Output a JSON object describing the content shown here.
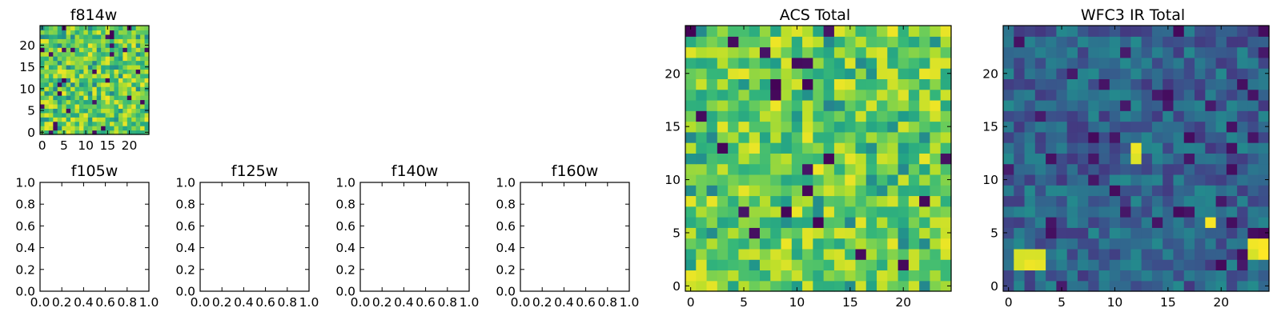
{
  "chart_data": [
    {
      "type": "heatmap",
      "title": "f814w",
      "colormap": "viridis",
      "grid_size": [
        25,
        25
      ],
      "xlim": [
        -0.5,
        24.5
      ],
      "ylim": [
        -0.5,
        24.5
      ],
      "xticks": [
        0,
        5,
        10,
        15,
        20
      ],
      "yticks": [
        0,
        5,
        10,
        15,
        20
      ],
      "xtick_labels": [
        "0",
        "5",
        "10",
        "15",
        "20"
      ],
      "ytick_labels": [
        "0",
        "5",
        "10",
        "15",
        "20"
      ],
      "value_profile": "mostly high (green–yellow) noise with scattered dark low-value pixels"
    },
    {
      "type": "heatmap",
      "title": "f105w",
      "empty": true,
      "xlim": [
        0,
        1
      ],
      "ylim": [
        0,
        1
      ],
      "xticks": [
        0,
        0.2,
        0.4,
        0.6,
        0.8,
        1.0
      ],
      "yticks": [
        0,
        0.2,
        0.4,
        0.6,
        0.8,
        1.0
      ],
      "xtick_labels": [
        "0.0",
        "0.2",
        "0.4",
        "0.6",
        "0.8",
        "1.0"
      ],
      "ytick_labels": [
        "0.0",
        "0.2",
        "0.4",
        "0.6",
        "0.8",
        "1.0"
      ]
    },
    {
      "type": "heatmap",
      "title": "f125w",
      "empty": true,
      "xlim": [
        0,
        1
      ],
      "ylim": [
        0,
        1
      ],
      "xticks": [
        0,
        0.2,
        0.4,
        0.6,
        0.8,
        1.0
      ],
      "yticks": [
        0,
        0.2,
        0.4,
        0.6,
        0.8,
        1.0
      ],
      "xtick_labels": [
        "0.0",
        "0.2",
        "0.4",
        "0.6",
        "0.8",
        "1.0"
      ],
      "ytick_labels": [
        "0.0",
        "0.2",
        "0.4",
        "0.6",
        "0.8",
        "1.0"
      ]
    },
    {
      "type": "heatmap",
      "title": "f140w",
      "empty": true,
      "xlim": [
        0,
        1
      ],
      "ylim": [
        0,
        1
      ],
      "xticks": [
        0,
        0.2,
        0.4,
        0.6,
        0.8,
        1.0
      ],
      "yticks": [
        0,
        0.2,
        0.4,
        0.6,
        0.8,
        1.0
      ],
      "xtick_labels": [
        "0.0",
        "0.2",
        "0.4",
        "0.6",
        "0.8",
        "1.0"
      ],
      "ytick_labels": [
        "0.0",
        "0.2",
        "0.4",
        "0.6",
        "0.8",
        "1.0"
      ]
    },
    {
      "type": "heatmap",
      "title": "f160w",
      "empty": true,
      "xlim": [
        0,
        1
      ],
      "ylim": [
        0,
        1
      ],
      "xticks": [
        0,
        0.2,
        0.4,
        0.6,
        0.8,
        1.0
      ],
      "yticks": [
        0,
        0.2,
        0.4,
        0.6,
        0.8,
        1.0
      ],
      "xtick_labels": [
        "0.0",
        "0.2",
        "0.4",
        "0.6",
        "0.8",
        "1.0"
      ],
      "ytick_labels": [
        "0.0",
        "0.2",
        "0.4",
        "0.6",
        "0.8",
        "1.0"
      ]
    },
    {
      "type": "heatmap",
      "title": "ACS Total",
      "colormap": "viridis",
      "grid_size": [
        25,
        25
      ],
      "xlim": [
        -0.5,
        24.5
      ],
      "ylim": [
        -0.5,
        24.5
      ],
      "xticks": [
        0,
        5,
        10,
        15,
        20
      ],
      "yticks": [
        0,
        5,
        10,
        15,
        20
      ],
      "xtick_labels": [
        "0",
        "5",
        "10",
        "15",
        "20"
      ],
      "ytick_labels": [
        "0",
        "5",
        "10",
        "15",
        "20"
      ],
      "value_profile": "mostly high (green–yellow) noise with scattered dark low-value pixels"
    },
    {
      "type": "heatmap",
      "title": "WFC3 IR Total",
      "colormap": "viridis",
      "grid_size": [
        25,
        25
      ],
      "xlim": [
        -0.5,
        24.5
      ],
      "ylim": [
        -0.5,
        24.5
      ],
      "xticks": [
        0,
        5,
        10,
        15,
        20
      ],
      "yticks": [
        0,
        5,
        10,
        15,
        20
      ],
      "xtick_labels": [
        "0",
        "5",
        "10",
        "15",
        "20"
      ],
      "ytick_labels": [
        "0",
        "5",
        "10",
        "15",
        "20"
      ],
      "value_profile": "mostly low (blue–teal) noise with a few bright yellow pixels near (2,3), (12,13), (19,6), (24,4)"
    }
  ]
}
